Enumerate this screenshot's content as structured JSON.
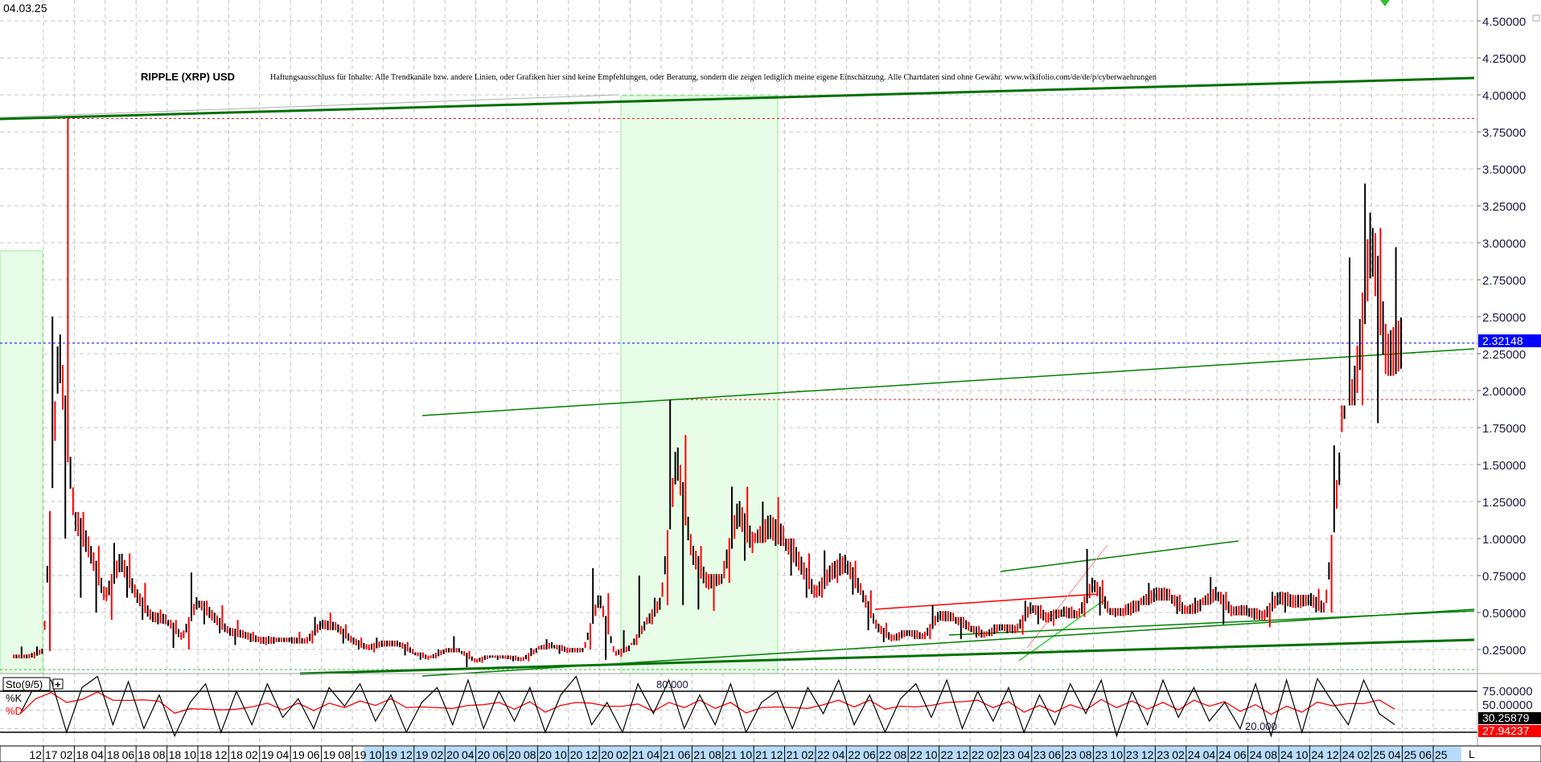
{
  "header": {
    "date": "04.03.25",
    "title": "RIPPLE (XRP) USD",
    "disclaimer": "Haftungsausschluss für Inhalte: Alle Trendkanäle bzw. andere Linien, oder Grafiken hier sind keine Empfehlungen, oder Beratung, sondern die zeigen lediglich meine eigene Einschätzung. Alle Chartdaten sind ohne Gewähr. www.wikifolio.com/de/de/p/cyberwaehrungen"
  },
  "colors": {
    "up": "#000000",
    "down": "#ff0000",
    "trend": "#008000",
    "current": "#0000ff",
    "zone": "#e8fde8"
  },
  "chart_data": [
    {
      "type": "bar",
      "title": "RIPPLE (XRP) USD",
      "ylim": [
        0.087,
        4.64
      ],
      "grid": true,
      "y_ticks": [
        "0.25000",
        "0.50000",
        "0.75000",
        "1.00000",
        "1.25000",
        "1.50000",
        "1.75000",
        "2.00000",
        "2.25000",
        "2.50000",
        "2.75000",
        "3.00000",
        "3.25000",
        "3.50000",
        "3.75000",
        "4.00000",
        "4.25000",
        "4.50000"
      ],
      "current_price": "2.32148",
      "bars_fields": [
        "month",
        "high",
        "low",
        "close"
      ],
      "bars": [
        [
          "2017-10",
          0.27,
          0.19,
          0.2
        ],
        [
          "2017-11",
          0.27,
          0.19,
          0.24
        ],
        [
          "2017-12",
          2.5,
          0.24,
          2.3
        ],
        [
          "2018-01",
          3.84,
          1.0,
          1.15
        ],
        [
          "2018-02",
          1.18,
          0.6,
          0.92
        ],
        [
          "2018-03",
          0.95,
          0.5,
          0.6
        ],
        [
          "2018-04",
          0.97,
          0.45,
          0.85
        ],
        [
          "2018-05",
          0.9,
          0.6,
          0.62
        ],
        [
          "2018-06",
          0.7,
          0.45,
          0.47
        ],
        [
          "2018-07",
          0.52,
          0.42,
          0.45
        ],
        [
          "2018-08",
          0.45,
          0.26,
          0.33
        ],
        [
          "2018-09",
          0.77,
          0.25,
          0.58
        ],
        [
          "2018-10",
          0.58,
          0.42,
          0.47
        ],
        [
          "2018-11",
          0.55,
          0.36,
          0.37
        ],
        [
          "2018-12",
          0.45,
          0.28,
          0.35
        ],
        [
          "2019-01",
          0.37,
          0.3,
          0.31
        ],
        [
          "2019-02",
          0.34,
          0.28,
          0.31
        ],
        [
          "2019-03",
          0.33,
          0.3,
          0.31
        ],
        [
          "2019-04",
          0.37,
          0.29,
          0.3
        ],
        [
          "2019-05",
          0.47,
          0.29,
          0.42
        ],
        [
          "2019-06",
          0.5,
          0.38,
          0.4
        ],
        [
          "2019-07",
          0.42,
          0.29,
          0.31
        ],
        [
          "2019-08",
          0.33,
          0.25,
          0.26
        ],
        [
          "2019-09",
          0.33,
          0.23,
          0.29
        ],
        [
          "2019-10",
          0.31,
          0.27,
          0.29
        ],
        [
          "2019-11",
          0.3,
          0.21,
          0.23
        ],
        [
          "2019-12",
          0.23,
          0.18,
          0.19
        ],
        [
          "2020-01",
          0.25,
          0.19,
          0.24
        ],
        [
          "2020-02",
          0.34,
          0.23,
          0.24
        ],
        [
          "2020-03",
          0.24,
          0.13,
          0.17
        ],
        [
          "2020-04",
          0.21,
          0.16,
          0.21
        ],
        [
          "2020-05",
          0.21,
          0.18,
          0.2
        ],
        [
          "2020-06",
          0.21,
          0.17,
          0.18
        ],
        [
          "2020-07",
          0.26,
          0.17,
          0.25
        ],
        [
          "2020-08",
          0.32,
          0.25,
          0.28
        ],
        [
          "2020-09",
          0.28,
          0.22,
          0.24
        ],
        [
          "2020-10",
          0.26,
          0.23,
          0.25
        ],
        [
          "2020-11",
          0.8,
          0.25,
          0.6
        ],
        [
          "2020-12",
          0.63,
          0.18,
          0.22
        ],
        [
          "2021-01",
          0.38,
          0.2,
          0.26
        ],
        [
          "2021-02",
          0.75,
          0.28,
          0.42
        ],
        [
          "2021-03",
          0.6,
          0.42,
          0.57
        ],
        [
          "2021-04",
          1.94,
          0.55,
          1.55
        ],
        [
          "2021-05",
          1.7,
          0.55,
          0.9
        ],
        [
          "2021-06",
          0.95,
          0.52,
          0.7
        ],
        [
          "2021-07",
          0.76,
          0.51,
          0.75
        ],
        [
          "2021-08",
          1.35,
          0.7,
          1.18
        ],
        [
          "2021-09",
          1.35,
          0.85,
          0.95
        ],
        [
          "2021-10",
          1.25,
          0.97,
          1.08
        ],
        [
          "2021-11",
          1.28,
          0.95,
          1.0
        ],
        [
          "2021-12",
          1.0,
          0.75,
          0.83
        ],
        [
          "2022-01",
          0.9,
          0.6,
          0.62
        ],
        [
          "2022-02",
          0.92,
          0.6,
          0.77
        ],
        [
          "2022-03",
          0.9,
          0.7,
          0.83
        ],
        [
          "2022-04",
          0.85,
          0.62,
          0.63
        ],
        [
          "2022-05",
          0.65,
          0.38,
          0.4
        ],
        [
          "2022-06",
          0.43,
          0.3,
          0.32
        ],
        [
          "2022-07",
          0.38,
          0.31,
          0.37
        ],
        [
          "2022-08",
          0.38,
          0.32,
          0.33
        ],
        [
          "2022-09",
          0.55,
          0.32,
          0.48
        ],
        [
          "2022-10",
          0.51,
          0.44,
          0.46
        ],
        [
          "2022-11",
          0.47,
          0.32,
          0.4
        ],
        [
          "2022-12",
          0.41,
          0.33,
          0.34
        ],
        [
          "2023-01",
          0.42,
          0.34,
          0.41
        ],
        [
          "2023-02",
          0.42,
          0.36,
          0.38
        ],
        [
          "2023-03",
          0.58,
          0.35,
          0.54
        ],
        [
          "2023-04",
          0.55,
          0.42,
          0.46
        ],
        [
          "2023-05",
          0.52,
          0.41,
          0.51
        ],
        [
          "2023-06",
          0.54,
          0.46,
          0.47
        ],
        [
          "2023-07",
          0.93,
          0.47,
          0.7
        ],
        [
          "2023-08",
          0.72,
          0.48,
          0.52
        ],
        [
          "2023-09",
          0.53,
          0.47,
          0.51
        ],
        [
          "2023-10",
          0.58,
          0.48,
          0.55
        ],
        [
          "2023-11",
          0.7,
          0.55,
          0.62
        ],
        [
          "2023-12",
          0.67,
          0.58,
          0.61
        ],
        [
          "2024-01",
          0.62,
          0.49,
          0.5
        ],
        [
          "2024-02",
          0.6,
          0.49,
          0.55
        ],
        [
          "2024-03",
          0.74,
          0.55,
          0.63
        ],
        [
          "2024-04",
          0.64,
          0.42,
          0.5
        ],
        [
          "2024-05",
          0.55,
          0.48,
          0.51
        ],
        [
          "2024-06",
          0.53,
          0.45,
          0.47
        ],
        [
          "2024-07",
          0.64,
          0.4,
          0.6
        ],
        [
          "2024-08",
          0.64,
          0.5,
          0.57
        ],
        [
          "2024-09",
          0.62,
          0.53,
          0.59
        ],
        [
          "2024-10",
          0.66,
          0.5,
          0.52
        ],
        [
          "2024-11",
          1.63,
          0.5,
          1.55
        ],
        [
          "2024-12",
          2.9,
          1.9,
          2.05
        ],
        [
          "2025-01",
          3.4,
          1.9,
          3.05
        ],
        [
          "2025-02",
          3.1,
          1.78,
          2.2
        ],
        [
          "2025-03",
          2.97,
          2.1,
          2.32
        ]
      ]
    },
    {
      "type": "line",
      "indicator": "Sto(9/5)",
      "series": [
        {
          "name": "%K",
          "color": "#000000"
        },
        {
          "name": "%D",
          "color": "#ff0000"
        }
      ],
      "ylim": [
        0,
        100
      ],
      "y_ticks": [
        "75.00000",
        "50.00000"
      ],
      "level_labels": [
        "80.000",
        "20.000"
      ],
      "k_values": [
        45,
        85,
        90,
        20,
        80,
        95,
        30,
        88,
        25,
        70,
        15,
        60,
        85,
        20,
        75,
        30,
        85,
        40,
        65,
        25,
        80,
        55,
        85,
        35,
        70,
        20,
        60,
        80,
        30,
        90,
        25,
        75,
        35,
        80,
        20,
        70,
        95,
        30,
        60,
        20,
        85,
        45,
        90,
        25,
        70,
        30,
        85,
        20,
        60,
        75,
        25,
        80,
        45,
        90,
        30,
        70,
        20,
        65,
        85,
        40,
        90,
        25,
        75,
        35,
        80,
        20,
        70,
        30,
        85,
        45,
        90,
        15,
        75,
        30,
        90,
        40,
        80,
        35,
        60,
        25,
        85,
        15,
        90,
        20,
        92,
        60,
        30,
        90,
        45,
        30.25879
      ],
      "k_last": "30.25879",
      "d_last": "27.94237"
    }
  ],
  "x_axis": {
    "labels": [
      "12 17",
      "02 18",
      "04 18",
      "06 18",
      "08 18",
      "10 18",
      "12 18",
      "02 19",
      "04 19",
      "06 19",
      "08 19",
      "10 19",
      "12 19",
      "02 20",
      "04 20",
      "06 20",
      "08 20",
      "10 20",
      "12 20",
      "02 21",
      "04 21",
      "06 21",
      "08 21",
      "10 21",
      "12 21",
      "02 22",
      "04 22",
      "06 22",
      "08 22",
      "10 22",
      "12 22",
      "02 23",
      "04 23",
      "06 23",
      "08 23",
      "10 23",
      "12 23",
      "02 24",
      "04 24",
      "06 24",
      "08 24",
      "10 24",
      "12 24",
      "02 25",
      "04 25",
      "06 25"
    ],
    "corner": "L"
  },
  "stoch_panel": {
    "label": "Sto(9/5)",
    "plus": "+",
    "k_label": "%K",
    "d_label": "%D"
  }
}
